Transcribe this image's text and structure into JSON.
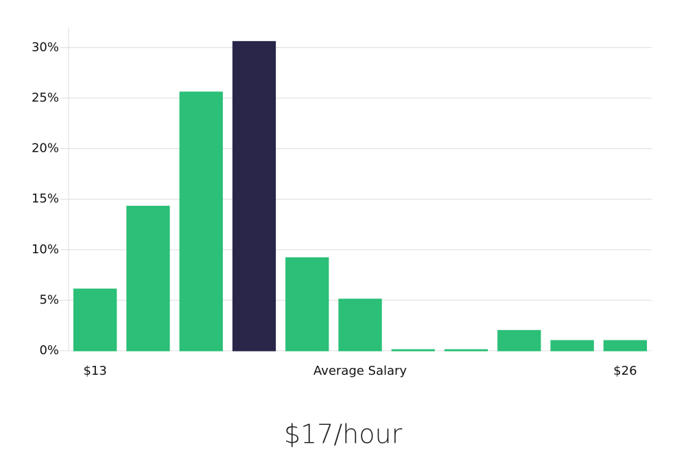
{
  "chart_data": {
    "type": "bar",
    "categories": [
      "$13",
      null,
      null,
      null,
      null,
      null,
      null,
      null,
      null,
      null,
      "$26"
    ],
    "values": [
      6.1,
      14.3,
      25.6,
      30.6,
      9.2,
      5.1,
      0.1,
      0.1,
      2.0,
      1.0,
      1.0
    ],
    "colors": [
      "#2bbf77",
      "#2bbf77",
      "#2bbf77",
      "#29264a",
      "#2bbf77",
      "#2bbf77",
      "#2bbf77",
      "#2bbf77",
      "#2bbf77",
      "#2bbf77",
      "#2bbf77"
    ],
    "x_label": "Average Salary",
    "ylim": [
      0,
      32
    ],
    "yticks": [
      {
        "value": 0,
        "label": "0%"
      },
      {
        "value": 5,
        "label": "5%"
      },
      {
        "value": 10,
        "label": "10%"
      },
      {
        "value": 15,
        "label": "15%"
      },
      {
        "value": 20,
        "label": "20%"
      },
      {
        "value": 25,
        "label": "25%"
      },
      {
        "value": 30,
        "label": "30%"
      }
    ],
    "grid": true,
    "headline": "$17/hour"
  }
}
